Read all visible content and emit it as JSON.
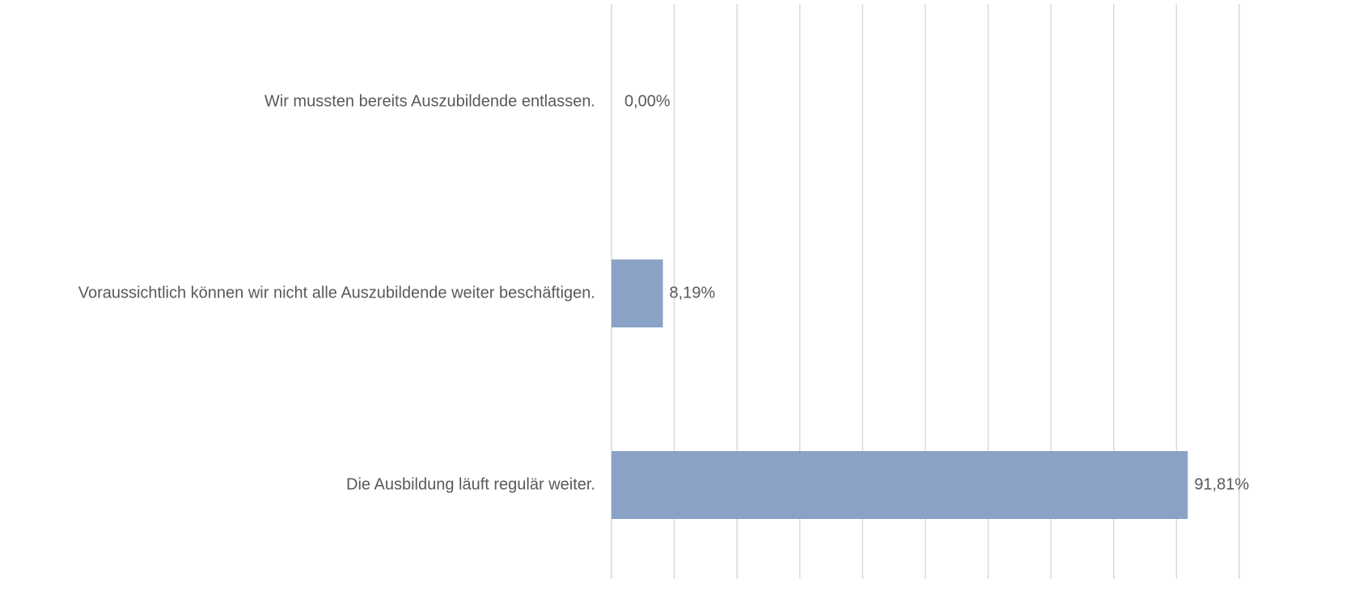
{
  "chart_data": {
    "type": "hbar",
    "categories": [
      "Wir mussten bereits Auszubildende entlassen.",
      "Voraussichtlich können wir nicht alle Auszubildende weiter beschäftigen.",
      "Die Ausbildung läuft regulär weiter."
    ],
    "values": [
      0,
      8.19,
      91.81
    ],
    "value_labels": [
      "0,00%",
      "8,19%",
      "91,81%"
    ],
    "color": "#8aa2c6",
    "xlim": [
      0,
      100
    ],
    "xticks": [
      0,
      10,
      20,
      30,
      40,
      50,
      60,
      70,
      80,
      90,
      100
    ],
    "grid": true
  }
}
